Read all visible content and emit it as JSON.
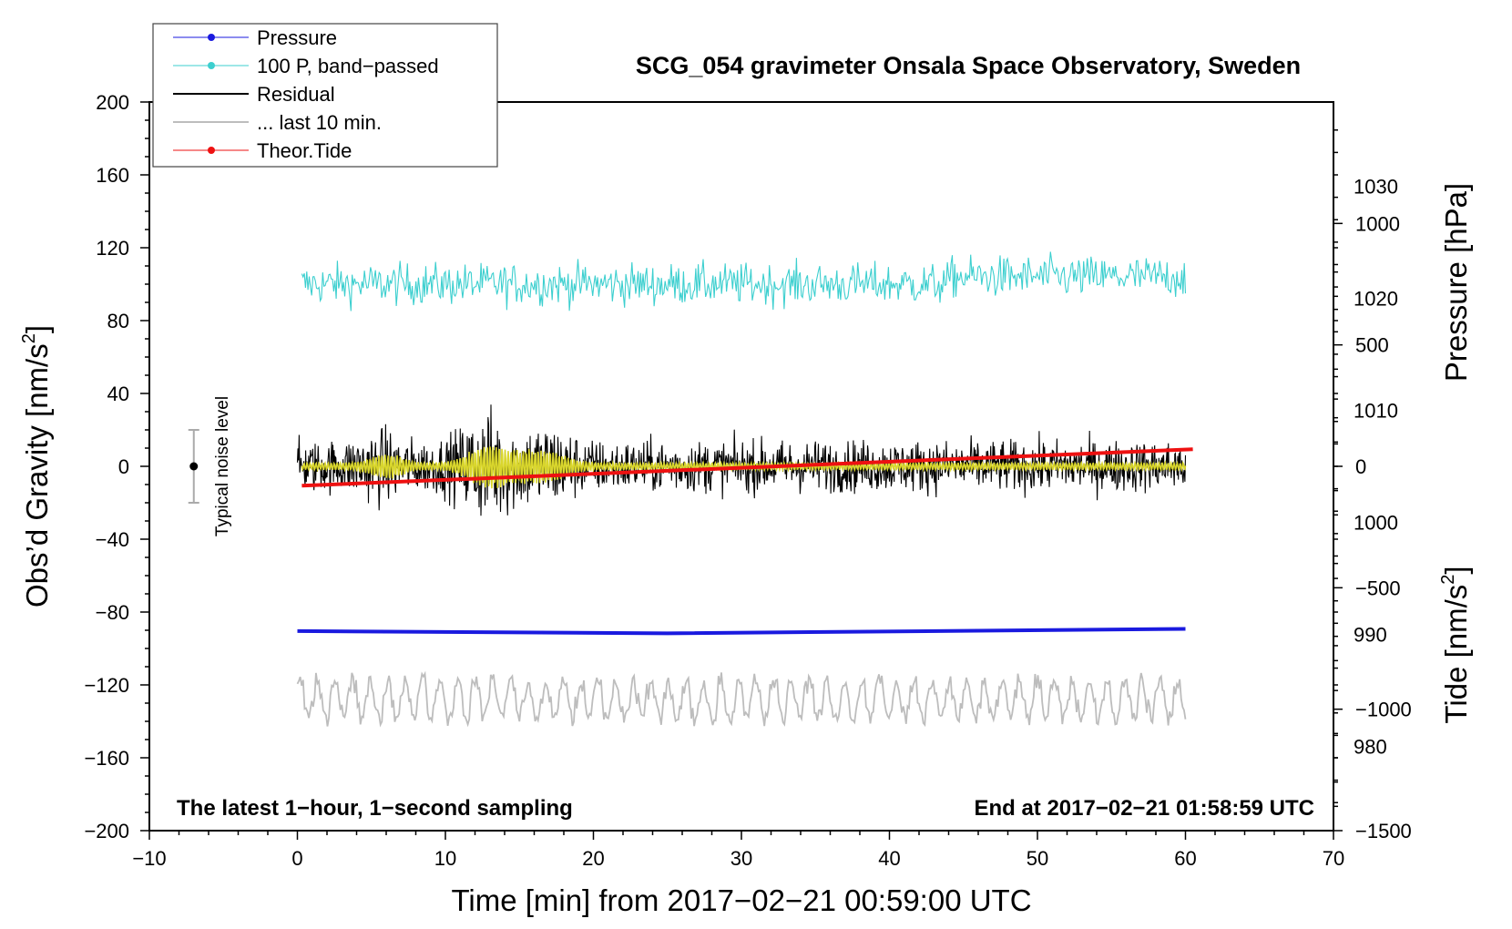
{
  "chart_data": {
    "type": "line",
    "title": "SCG_054 gravimeter Onsala Space Observatory, Sweden",
    "xlabel": "Time [min] from 2017−02−21 00:59:00 UTC",
    "ylabel_left_main": "Obs’d Gravity [nm/s",
    "ylabel_left_sup": "2",
    "ylabel_left_end": "]",
    "ylabel_right_pressure": "Pressure [hPa]",
    "ylabel_right_tide_main": "Tide [nm/s",
    "ylabel_right_tide_sup": "2",
    "ylabel_right_tide_end": "]",
    "xlim": [
      -10,
      70
    ],
    "ylim": [
      -200,
      200
    ],
    "pressure_axis_range": [
      972.5,
      1037.5
    ],
    "tide_axis_range": [
      -1500,
      1500
    ],
    "x_ticks": [
      "−10",
      "0",
      "10",
      "20",
      "30",
      "40",
      "50",
      "60",
      "70"
    ],
    "y_ticks": [
      "−200",
      "−160",
      "−120",
      "−80",
      "−40",
      "0",
      "40",
      "80",
      "120",
      "160",
      "200"
    ],
    "pressure_ticks": [
      "980",
      "990",
      "1000",
      "1010",
      "1020",
      "1030"
    ],
    "tide_ticks": [
      "−1500",
      "−1000",
      "−500",
      "0",
      "500",
      "1000"
    ],
    "annotation_left": "The latest 1−hour, 1−second sampling",
    "annotation_right": "End at 2017−02−21 01:58:59 UTC",
    "noise_label": "Typical noise level",
    "noise_bar": {
      "x": -7,
      "center": 0,
      "half_range": 20
    },
    "legend": [
      {
        "label": "Pressure",
        "color": "#1a1adf",
        "marker": true,
        "width": 1
      },
      {
        "label": "100 P, band−passed",
        "color": "#3ccfcf",
        "marker": true,
        "width": 1
      },
      {
        "label": "Residual",
        "color": "#000000",
        "marker": false,
        "width": 2
      },
      {
        "label": "... last 10 min.",
        "color": "#bdbdbd",
        "marker": false,
        "width": 2
      },
      {
        "label": "Theor.Tide",
        "color": "#ee1111",
        "marker": true,
        "width": 1
      }
    ],
    "series": [
      {
        "name": "Pressure",
        "color": "#1a1adf",
        "axis": "pressure",
        "x": [
          0,
          25,
          60
        ],
        "values": [
          990.3,
          990.1,
          990.5
        ]
      },
      {
        "name": "100 P, band−passed",
        "color": "#3ccfcf",
        "axis": "gravity",
        "x_range": [
          0.3,
          60
        ],
        "mean": 100,
        "amplitude": 13
      },
      {
        "name": "Residual",
        "color": "#000000",
        "axis": "gravity",
        "x_range": [
          0,
          60
        ],
        "mean": 0,
        "amplitude": 18
      },
      {
        "name": "Residual (smoothed)",
        "color": "#d9d62c",
        "axis": "gravity",
        "x_range": [
          0.3,
          60
        ],
        "mean": 0,
        "amplitude": 6
      },
      {
        "name": "Theor.Tide",
        "color": "#ee1111",
        "axis": "tide",
        "x": [
          0.3,
          60.5
        ],
        "values": [
          -80,
          70
        ]
      },
      {
        "name": "... last 10 min.",
        "color": "#bdbdbd",
        "axis": "gravity",
        "x_range": [
          0,
          60
        ],
        "mean": -128,
        "amplitude": 14
      }
    ]
  }
}
